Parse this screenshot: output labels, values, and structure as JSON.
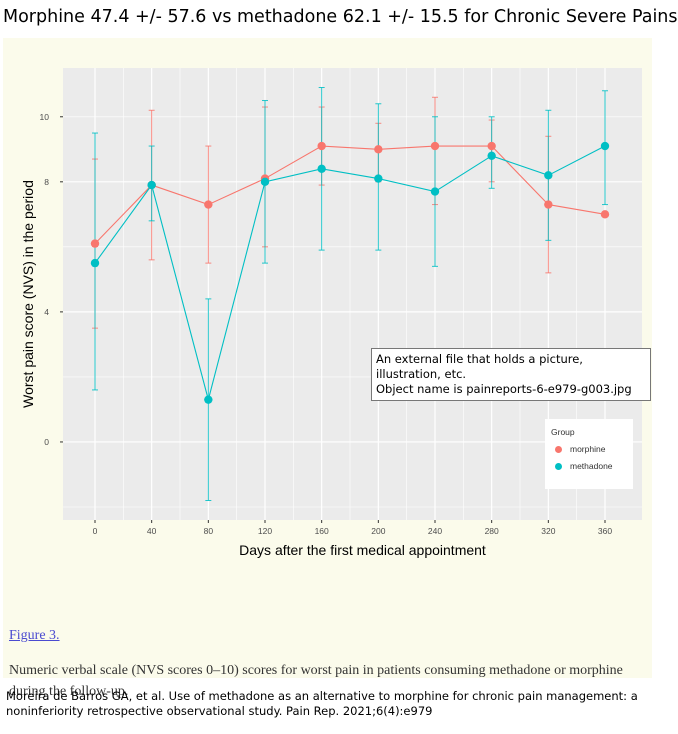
{
  "page": {
    "title": "Morphine 47.4 +/- 57.6 vs methadone 62.1 +/- 15.5 for Chronic Severe Pains",
    "figure_label": "Figure 3.",
    "caption": "Numeric verbal scale (NVS scores 0–10) scores for worst pain in patients consuming methadone or morphine during the follow-up.",
    "tooltip_line1": "An external file that holds a picture, illustration, etc.",
    "tooltip_line2": "Object name is painreports-6-e979-g003.jpg",
    "citation": "Moreira de Barros GA, et al. Use of methadone as an alternative to morphine for chronic pain management: a noninferiority retrospective observational study. Pain Rep. 2021;6(4):e979"
  },
  "chart_data": {
    "type": "line",
    "xlabel": "Days after the first medical appointment",
    "ylabel": "Worst pain score (NVS) in the period",
    "x": [
      0,
      40,
      80,
      120,
      160,
      200,
      240,
      280,
      320,
      360
    ],
    "x_ticks": [
      "0",
      "40",
      "80",
      "120",
      "160",
      "200",
      "240",
      "280",
      "320",
      "360"
    ],
    "y_ticks": [
      "0",
      "4",
      "8",
      "10"
    ],
    "ylim": [
      -2.4,
      11.5
    ],
    "grid": true,
    "background": "#ebebeb",
    "legend": {
      "title": "Group",
      "position": "right",
      "entries": [
        "morphine",
        "methadone"
      ]
    },
    "series": [
      {
        "name": "morphine",
        "color": "#f8766d",
        "values": [
          6.1,
          7.9,
          7.3,
          8.1,
          9.1,
          9.0,
          9.1,
          9.1,
          7.3,
          7.0
        ],
        "error_low": [
          3.5,
          5.6,
          5.5,
          6.0,
          7.9,
          8.0,
          7.3,
          8.0,
          5.2,
          null
        ],
        "error_high": [
          8.7,
          10.2,
          9.1,
          10.3,
          10.3,
          9.8,
          10.6,
          9.9,
          9.4,
          null
        ]
      },
      {
        "name": "methadone",
        "color": "#00bfc4",
        "values": [
          5.5,
          7.9,
          1.3,
          8.0,
          8.4,
          8.1,
          7.7,
          8.8,
          8.2,
          9.1
        ],
        "error_low": [
          1.6,
          6.8,
          -1.8,
          5.5,
          5.9,
          5.9,
          5.4,
          7.8,
          6.2,
          7.3
        ],
        "error_high": [
          9.5,
          9.1,
          4.4,
          10.5,
          10.9,
          10.4,
          10.0,
          10.0,
          10.2,
          10.8
        ]
      }
    ]
  }
}
